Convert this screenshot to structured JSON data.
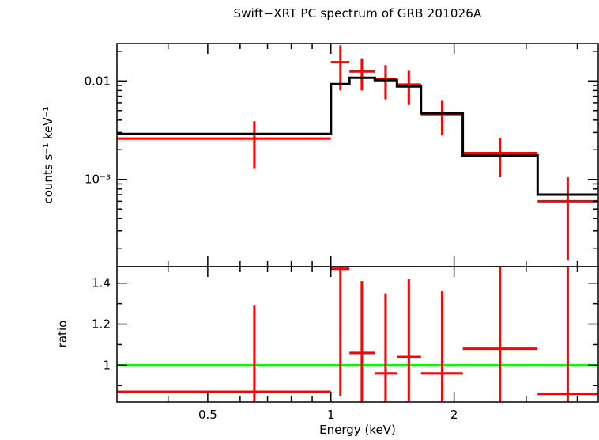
{
  "title": "Swift−XRT PC spectrum of GRB 201026A",
  "colors": {
    "data": "#ff0000",
    "model": "#000000",
    "reference_line": "#00ff00",
    "frame": "#000000",
    "background": "#ffffff",
    "text": "#000000"
  },
  "chart_data": {
    "type": "line",
    "title": "Swift−XRT PC spectrum of GRB 201026A",
    "xlabel": "Energy (keV)",
    "xscale": "log",
    "x_range": [
      0.3,
      4.5
    ],
    "x_major_ticks": [
      {
        "value": 0.5,
        "label": "0.5"
      },
      {
        "value": 1,
        "label": "1"
      },
      {
        "value": 2,
        "label": "2"
      }
    ],
    "legend": "none",
    "grid": false,
    "panels": [
      {
        "name": "spectrum",
        "ylabel": "counts s⁻¹ keV⁻¹",
        "yscale": "log",
        "y_range": [
          0.00013,
          0.024
        ],
        "y_major_ticks": [
          {
            "value": 0.001,
            "label": "10⁻³"
          },
          {
            "value": 0.01,
            "label": "0.01"
          }
        ],
        "series": [
          {
            "name": "observed-data",
            "style": "cross-errorbar",
            "color": "#ff0000",
            "points": [
              {
                "x": 0.65,
                "xlo": 0.3,
                "xhi": 1.0,
                "y": 0.0026,
                "yerr": 0.0013
              },
              {
                "x": 1.055,
                "xlo": 1.0,
                "xhi": 1.11,
                "y": 0.0155,
                "yerr": 0.0075
              },
              {
                "x": 1.19,
                "xlo": 1.11,
                "xhi": 1.28,
                "y": 0.0125,
                "yerr": 0.0045
              },
              {
                "x": 1.36,
                "xlo": 1.28,
                "xhi": 1.45,
                "y": 0.0105,
                "yerr": 0.004
              },
              {
                "x": 1.55,
                "xlo": 1.45,
                "xhi": 1.66,
                "y": 0.0092,
                "yerr": 0.0035
              },
              {
                "x": 1.87,
                "xlo": 1.66,
                "xhi": 2.1,
                "y": 0.0046,
                "yerr": 0.0018
              },
              {
                "x": 2.59,
                "xlo": 2.1,
                "xhi": 3.2,
                "y": 0.00185,
                "yerr": 0.0008
              },
              {
                "x": 3.79,
                "xlo": 3.2,
                "xhi": 4.5,
                "y": 0.0006,
                "yerr": 0.00045
              }
            ]
          },
          {
            "name": "folded-model",
            "style": "step",
            "color": "#000000",
            "steps": [
              {
                "xlo": 0.3,
                "xhi": 1.0,
                "y": 0.0029
              },
              {
                "xlo": 1.0,
                "xhi": 1.11,
                "y": 0.0093
              },
              {
                "xlo": 1.11,
                "xhi": 1.28,
                "y": 0.0108
              },
              {
                "xlo": 1.28,
                "xhi": 1.45,
                "y": 0.0102
              },
              {
                "xlo": 1.45,
                "xhi": 1.66,
                "y": 0.0088
              },
              {
                "xlo": 1.66,
                "xhi": 2.1,
                "y": 0.0047
              },
              {
                "xlo": 2.1,
                "xhi": 3.2,
                "y": 0.00175
              },
              {
                "xlo": 3.2,
                "xhi": 4.5,
                "y": 0.0007
              }
            ]
          }
        ]
      },
      {
        "name": "ratio",
        "ylabel": "ratio",
        "yscale": "linear",
        "y_range": [
          0.82,
          1.48
        ],
        "y_major_ticks": [
          {
            "value": 1,
            "label": "1"
          },
          {
            "value": 1.2,
            "label": "1.2"
          },
          {
            "value": 1.4,
            "label": "1.4"
          }
        ],
        "y_minor_ticks": [
          0.9,
          1.1,
          1.3
        ],
        "reference_line": {
          "y": 1,
          "color": "#00ff00"
        },
        "series": [
          {
            "name": "ratio-data",
            "style": "cross-errorbar",
            "color": "#ff0000",
            "points": [
              {
                "x": 0.65,
                "xlo": 0.3,
                "xhi": 1.0,
                "y": 0.87,
                "yerr": 0.42
              },
              {
                "x": 1.055,
                "xlo": 1.0,
                "xhi": 1.11,
                "y": 1.47,
                "yerr": 0.62
              },
              {
                "x": 1.19,
                "xlo": 1.11,
                "xhi": 1.28,
                "y": 1.06,
                "yerr": 0.35
              },
              {
                "x": 1.36,
                "xlo": 1.28,
                "xhi": 1.45,
                "y": 0.96,
                "yerr": 0.39
              },
              {
                "x": 1.55,
                "xlo": 1.45,
                "xhi": 1.66,
                "y": 1.04,
                "yerr": 0.38
              },
              {
                "x": 1.87,
                "xlo": 1.66,
                "xhi": 2.1,
                "y": 0.96,
                "yerr": 0.4
              },
              {
                "x": 2.59,
                "xlo": 2.1,
                "xhi": 3.2,
                "y": 1.08,
                "yerr": 0.65
              },
              {
                "x": 3.79,
                "xlo": 3.2,
                "xhi": 4.5,
                "y": 0.86,
                "yerr": 0.75
              }
            ]
          }
        ]
      }
    ]
  }
}
